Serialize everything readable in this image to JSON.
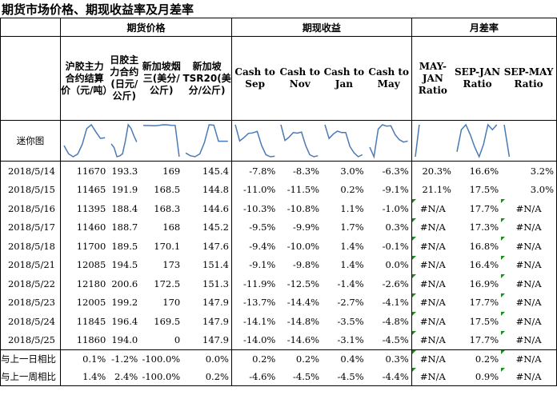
{
  "title": "期货市场价格、期现收益率及月差率",
  "groups": {
    "futures": "期货价格",
    "basis": "期现收益",
    "spread": "月差率"
  },
  "headers": [
    "沪胶主力合约结算价（元/吨）",
    "日胶主力合约(日元/公斤)",
    "新加坡烟三(美分/公斤)",
    "新加坡TSR20(美分/公斤)",
    "Cash to Sep",
    "Cash to Nov",
    "Cash to Jan",
    "Cash to May",
    "MAY-JAN Ratio",
    "SEP-JAN Ratio",
    "SEP-MAY Ratio"
  ],
  "spark_label": "迷你图",
  "rows": [
    {
      "date": "2018/5/14",
      "v": [
        "11670",
        "193.3",
        "169",
        "145.4",
        "-7.8%",
        "-8.3%",
        "3.0%",
        "-6.3%",
        "20.3%",
        "16.6%",
        "3.2%"
      ]
    },
    {
      "date": "2018/5/15",
      "v": [
        "11465",
        "191.9",
        "168.5",
        "144.8",
        "-11.0%",
        "-11.5%",
        "0.2%",
        "-9.1%",
        "21.1%",
        "17.5%",
        "3.0%"
      ]
    },
    {
      "date": "2018/5/16",
      "v": [
        "11395",
        "188.4",
        "168.3",
        "144.6",
        "-10.3%",
        "-10.8%",
        "1.1%",
        "-1.0%",
        "#N/A",
        "17.7%",
        "#N/A"
      ]
    },
    {
      "date": "2018/5/17",
      "v": [
        "11460",
        "188.7",
        "168",
        "145.2",
        "-9.5%",
        "-9.9%",
        "1.7%",
        "0.3%",
        "#N/A",
        "17.3%",
        "#N/A"
      ]
    },
    {
      "date": "2018/5/18",
      "v": [
        "11700",
        "189.5",
        "170.1",
        "147.6",
        "-9.4%",
        "-10.0%",
        "1.4%",
        "-0.1%",
        "#N/A",
        "16.8%",
        "#N/A"
      ]
    },
    {
      "date": "2018/5/21",
      "v": [
        "12085",
        "194.5",
        "173",
        "151.4",
        "-9.1%",
        "-9.8%",
        "1.4%",
        "0.0%",
        "#N/A",
        "16.4%",
        "#N/A"
      ]
    },
    {
      "date": "2018/5/22",
      "v": [
        "12180",
        "200.6",
        "172.5",
        "151.3",
        "-11.9%",
        "-12.5%",
        "-1.4%",
        "-2.6%",
        "#N/A",
        "16.9%",
        "#N/A"
      ]
    },
    {
      "date": "2018/5/23",
      "v": [
        "12005",
        "199.2",
        "170",
        "147.9",
        "-13.7%",
        "-14.4%",
        "-2.7%",
        "-4.1%",
        "#N/A",
        "17.7%",
        "#N/A"
      ]
    },
    {
      "date": "2018/5/24",
      "v": [
        "11845",
        "196.4",
        "169.5",
        "147.9",
        "-14.1%",
        "-14.8%",
        "-3.5%",
        "-4.8%",
        "#N/A",
        "17.5%",
        "#N/A"
      ]
    },
    {
      "date": "2018/5/25",
      "v": [
        "11860",
        "194.0",
        "0",
        "147.9",
        "-14.0%",
        "-14.6%",
        "-3.1%",
        "-4.5%",
        "#N/A",
        "17.7%",
        "#N/A"
      ]
    }
  ],
  "compare": [
    {
      "label": "与上一日相比",
      "v": [
        "0.1%",
        "-1.2%",
        "-100.0%",
        "0.0%",
        "0.2%",
        "0.2%",
        "0.4%",
        "0.3%",
        "#N/A",
        "0.2%",
        "#N/A"
      ]
    },
    {
      "label": "与上一周相比",
      "v": [
        "1.4%",
        "2.4%",
        "-100.0%",
        "0.2%",
        "-4.6%",
        "-4.5%",
        "-4.5%",
        "-4.4%",
        "#N/A",
        "0.9%",
        "#N/A"
      ]
    }
  ],
  "colors": {
    "sparkline": "#4a7ab5",
    "error_flag": "#1a8f1a",
    "border": "#000000"
  }
}
